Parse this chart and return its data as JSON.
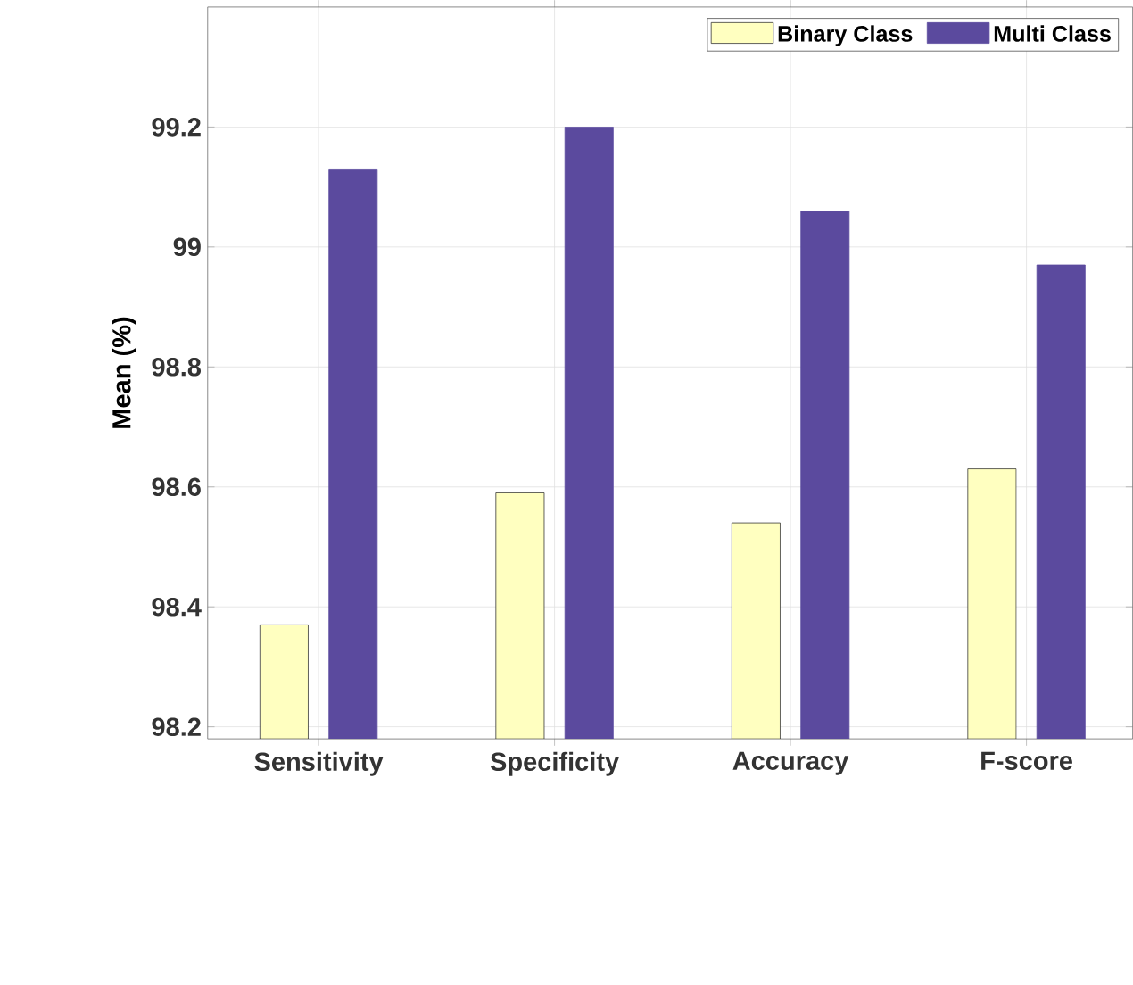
{
  "chart_data": {
    "type": "bar",
    "ylabel": "Mean (%)",
    "categories": [
      "Sensitivity",
      "Specificity",
      "Accuracy",
      "F-score"
    ],
    "series": [
      {
        "name": "Binary Class",
        "color": "#ffffc0",
        "values": [
          98.37,
          98.59,
          98.54,
          98.63
        ]
      },
      {
        "name": "Multi Class",
        "color": "#5b4a9e",
        "values": [
          99.13,
          99.2,
          99.06,
          98.97
        ]
      }
    ],
    "ylim": [
      98.18,
      99.4
    ],
    "yticks": [
      98.2,
      98.4,
      98.6,
      98.8,
      99,
      99.2
    ],
    "grid": true,
    "legend": "top right"
  }
}
